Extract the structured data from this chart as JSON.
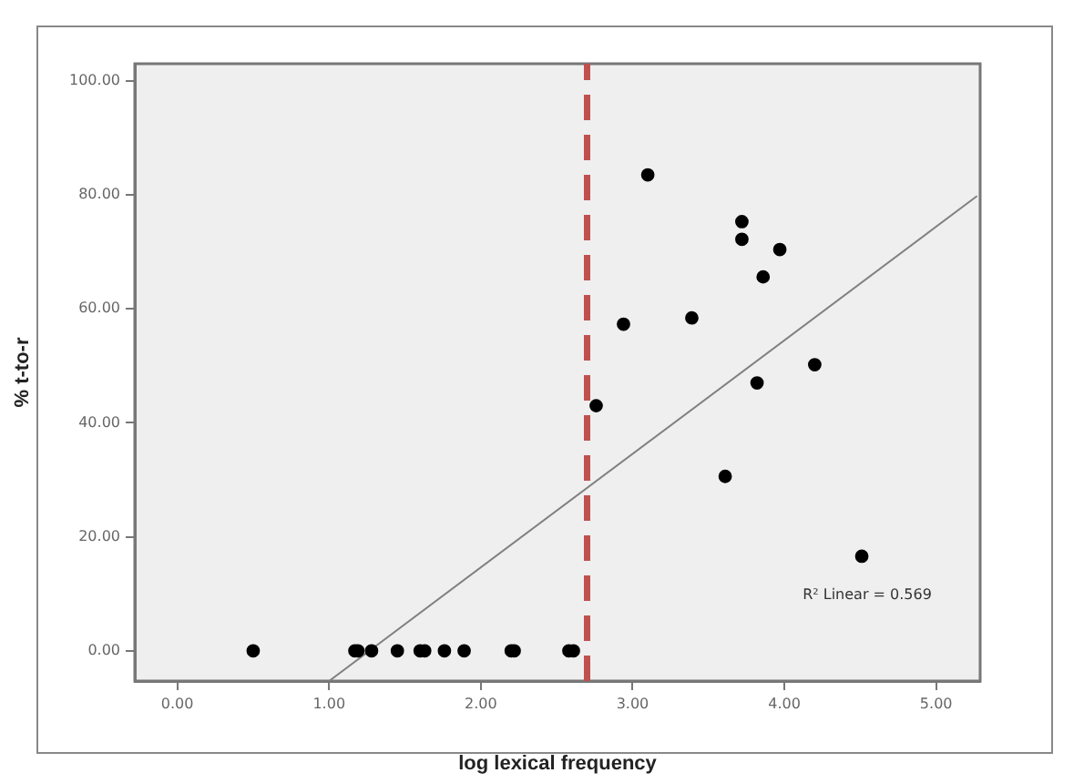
{
  "chart_data": {
    "type": "scatter",
    "xlabel": "log lexical frequency",
    "ylabel": "% t-to-r",
    "xlim": [
      -0.28,
      5.29
    ],
    "ylim": [
      -5.3,
      103
    ],
    "xticks": [
      {
        "value": 0,
        "label": "0.00"
      },
      {
        "value": 1,
        "label": "1.00"
      },
      {
        "value": 2,
        "label": "2.00"
      },
      {
        "value": 3,
        "label": "3.00"
      },
      {
        "value": 4,
        "label": "4.00"
      },
      {
        "value": 5,
        "label": "5.00"
      }
    ],
    "yticks": [
      {
        "value": 0,
        "label": "0.00"
      },
      {
        "value": 20,
        "label": "20.00"
      },
      {
        "value": 40,
        "label": "40.00"
      },
      {
        "value": 60,
        "label": "60.00"
      },
      {
        "value": 80,
        "label": "80.00"
      },
      {
        "value": 100,
        "label": "100.00"
      }
    ],
    "grid": false,
    "legend": false,
    "marker": "circle",
    "series": [
      {
        "color": "#000000",
        "x": [
          0.5,
          1.17,
          1.19,
          1.28,
          1.45,
          1.6,
          1.63,
          1.76,
          1.89,
          2.2,
          2.22,
          2.58,
          2.61,
          2.76,
          2.94,
          3.1,
          3.39,
          3.61,
          3.72,
          3.72,
          3.82,
          3.86,
          3.97,
          4.2,
          4.51
        ],
        "values": [
          0,
          0,
          0,
          0,
          0,
          0,
          0,
          0,
          0,
          0,
          0,
          0,
          0,
          43,
          57.3,
          83.5,
          58.4,
          30.6,
          75.3,
          72.2,
          47,
          65.6,
          70.4,
          50.2,
          16.6
        ]
      },
      {
        "type": "line",
        "color": "#808080",
        "marker": "none",
        "x": [
          1.0,
          5.27
        ],
        "values": [
          -5.3,
          79.8
        ]
      }
    ],
    "ref_lines": [
      {
        "axis": "x",
        "value": 2.7,
        "color": "#c0504d",
        "line_style": "dashed"
      }
    ],
    "annotations": [
      "R² Linear = 0.569"
    ]
  }
}
